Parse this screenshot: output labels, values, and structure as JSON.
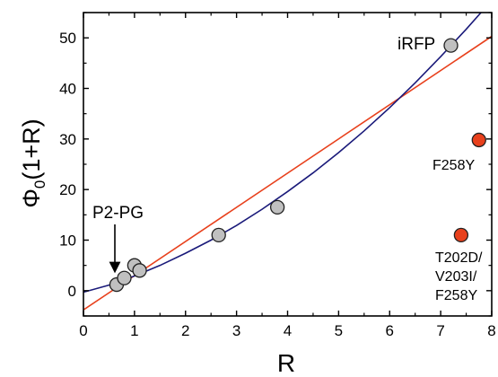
{
  "chart_data": {
    "type": "scatter",
    "xlabel": "R",
    "ylabel": {
      "main": "Φ",
      "sub": "0",
      "rest": "(1+R)"
    },
    "xlim": [
      0,
      8
    ],
    "ylim": [
      -5,
      55
    ],
    "x_ticks": [
      "0",
      "1",
      "2",
      "3",
      "4",
      "5",
      "6",
      "7",
      "8"
    ],
    "y_ticks": [
      "0",
      "10",
      "20",
      "30",
      "40",
      "50"
    ],
    "colors": {
      "gray_marker": "#c0c0c0",
      "red_marker": "#e8401c",
      "fit_curve": "#1a1a7a",
      "fit_line": "#e8401c"
    },
    "series": [
      {
        "x": [
          0.65,
          0.8,
          1.0,
          1.1,
          2.65,
          3.8,
          7.2
        ],
        "y": [
          1.2,
          2.5,
          5.0,
          4.0,
          11.0,
          16.5,
          48.5
        ]
      },
      {
        "x": [
          7.75,
          7.4
        ],
        "y": [
          29.8,
          11.0
        ]
      }
    ],
    "fits": [
      {
        "type": "line",
        "x": [
          0,
          8
        ],
        "y": [
          -3.8,
          50.3
        ]
      },
      {
        "type": "curve",
        "x": [
          0,
          0.5,
          1,
          1.5,
          2,
          2.5,
          3,
          3.5,
          4,
          4.5,
          5,
          5.5,
          6,
          6.5,
          7,
          7.5,
          8
        ],
        "y": [
          -0.3,
          1.1,
          2.9,
          5.0,
          7.4,
          10.0,
          12.9,
          16.1,
          19.6,
          23.3,
          27.3,
          31.6,
          36.2,
          41.1,
          46.3,
          51.7,
          57.4
        ]
      }
    ],
    "annotations": {
      "irfp": "iRFP",
      "f258y": "F258Y",
      "triple": [
        "T202D/",
        "V203I/",
        "F258Y"
      ],
      "p2pg": "P2-PG"
    }
  }
}
